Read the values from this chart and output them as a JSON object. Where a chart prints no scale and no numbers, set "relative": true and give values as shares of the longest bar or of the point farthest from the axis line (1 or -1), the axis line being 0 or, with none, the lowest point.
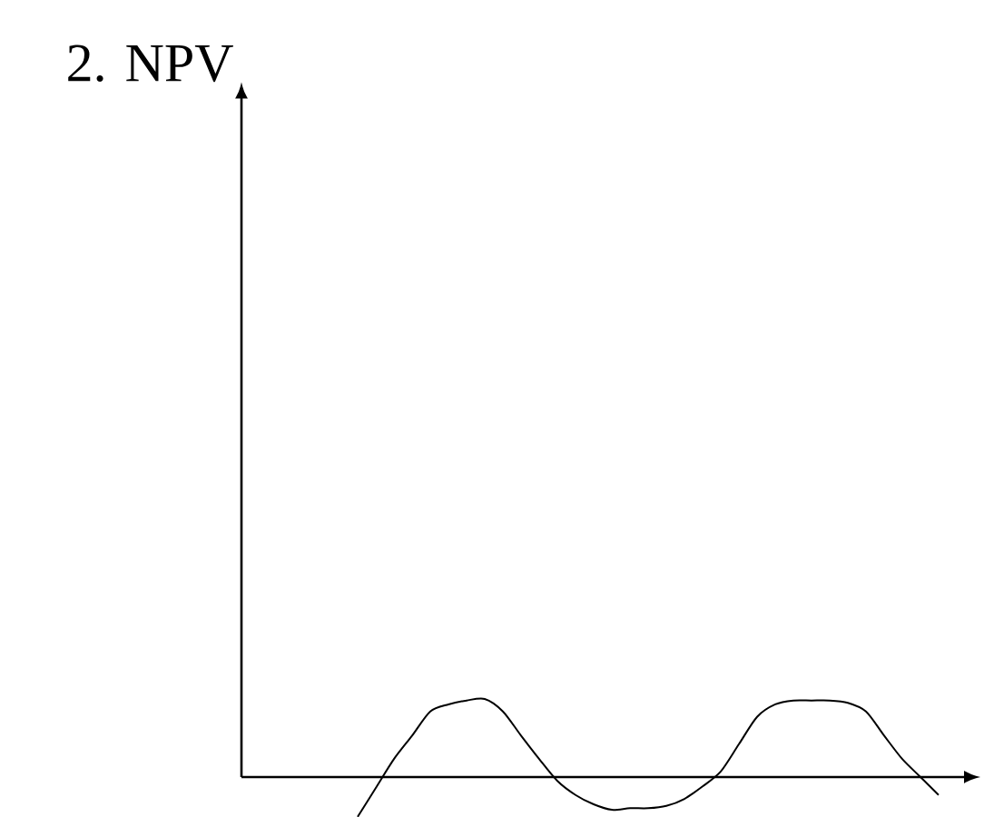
{
  "chart_data": {
    "type": "line",
    "annotations": [
      "2. NPV"
    ],
    "relative": true,
    "color": "#000000",
    "categories": [
      null,
      null,
      null,
      null,
      null,
      null,
      null,
      null,
      null,
      null,
      null,
      null,
      null,
      null,
      null,
      null,
      null,
      null,
      null,
      null,
      null,
      null,
      null,
      null,
      null,
      null,
      null,
      null,
      null,
      null,
      null,
      null,
      null
    ],
    "values": [
      -0.51,
      -0.14,
      0.23,
      0.53,
      0.84,
      0.93,
      0.98,
      1,
      0.84,
      0.53,
      0.23,
      -0.05,
      -0.23,
      -0.35,
      -0.42,
      -0.4,
      -0.4,
      -0.37,
      -0.28,
      -0.12,
      0.07,
      0.42,
      0.77,
      0.93,
      0.98,
      0.98,
      0.98,
      0.95,
      0.84,
      0.53,
      0.23,
      0,
      -0.23
    ]
  }
}
